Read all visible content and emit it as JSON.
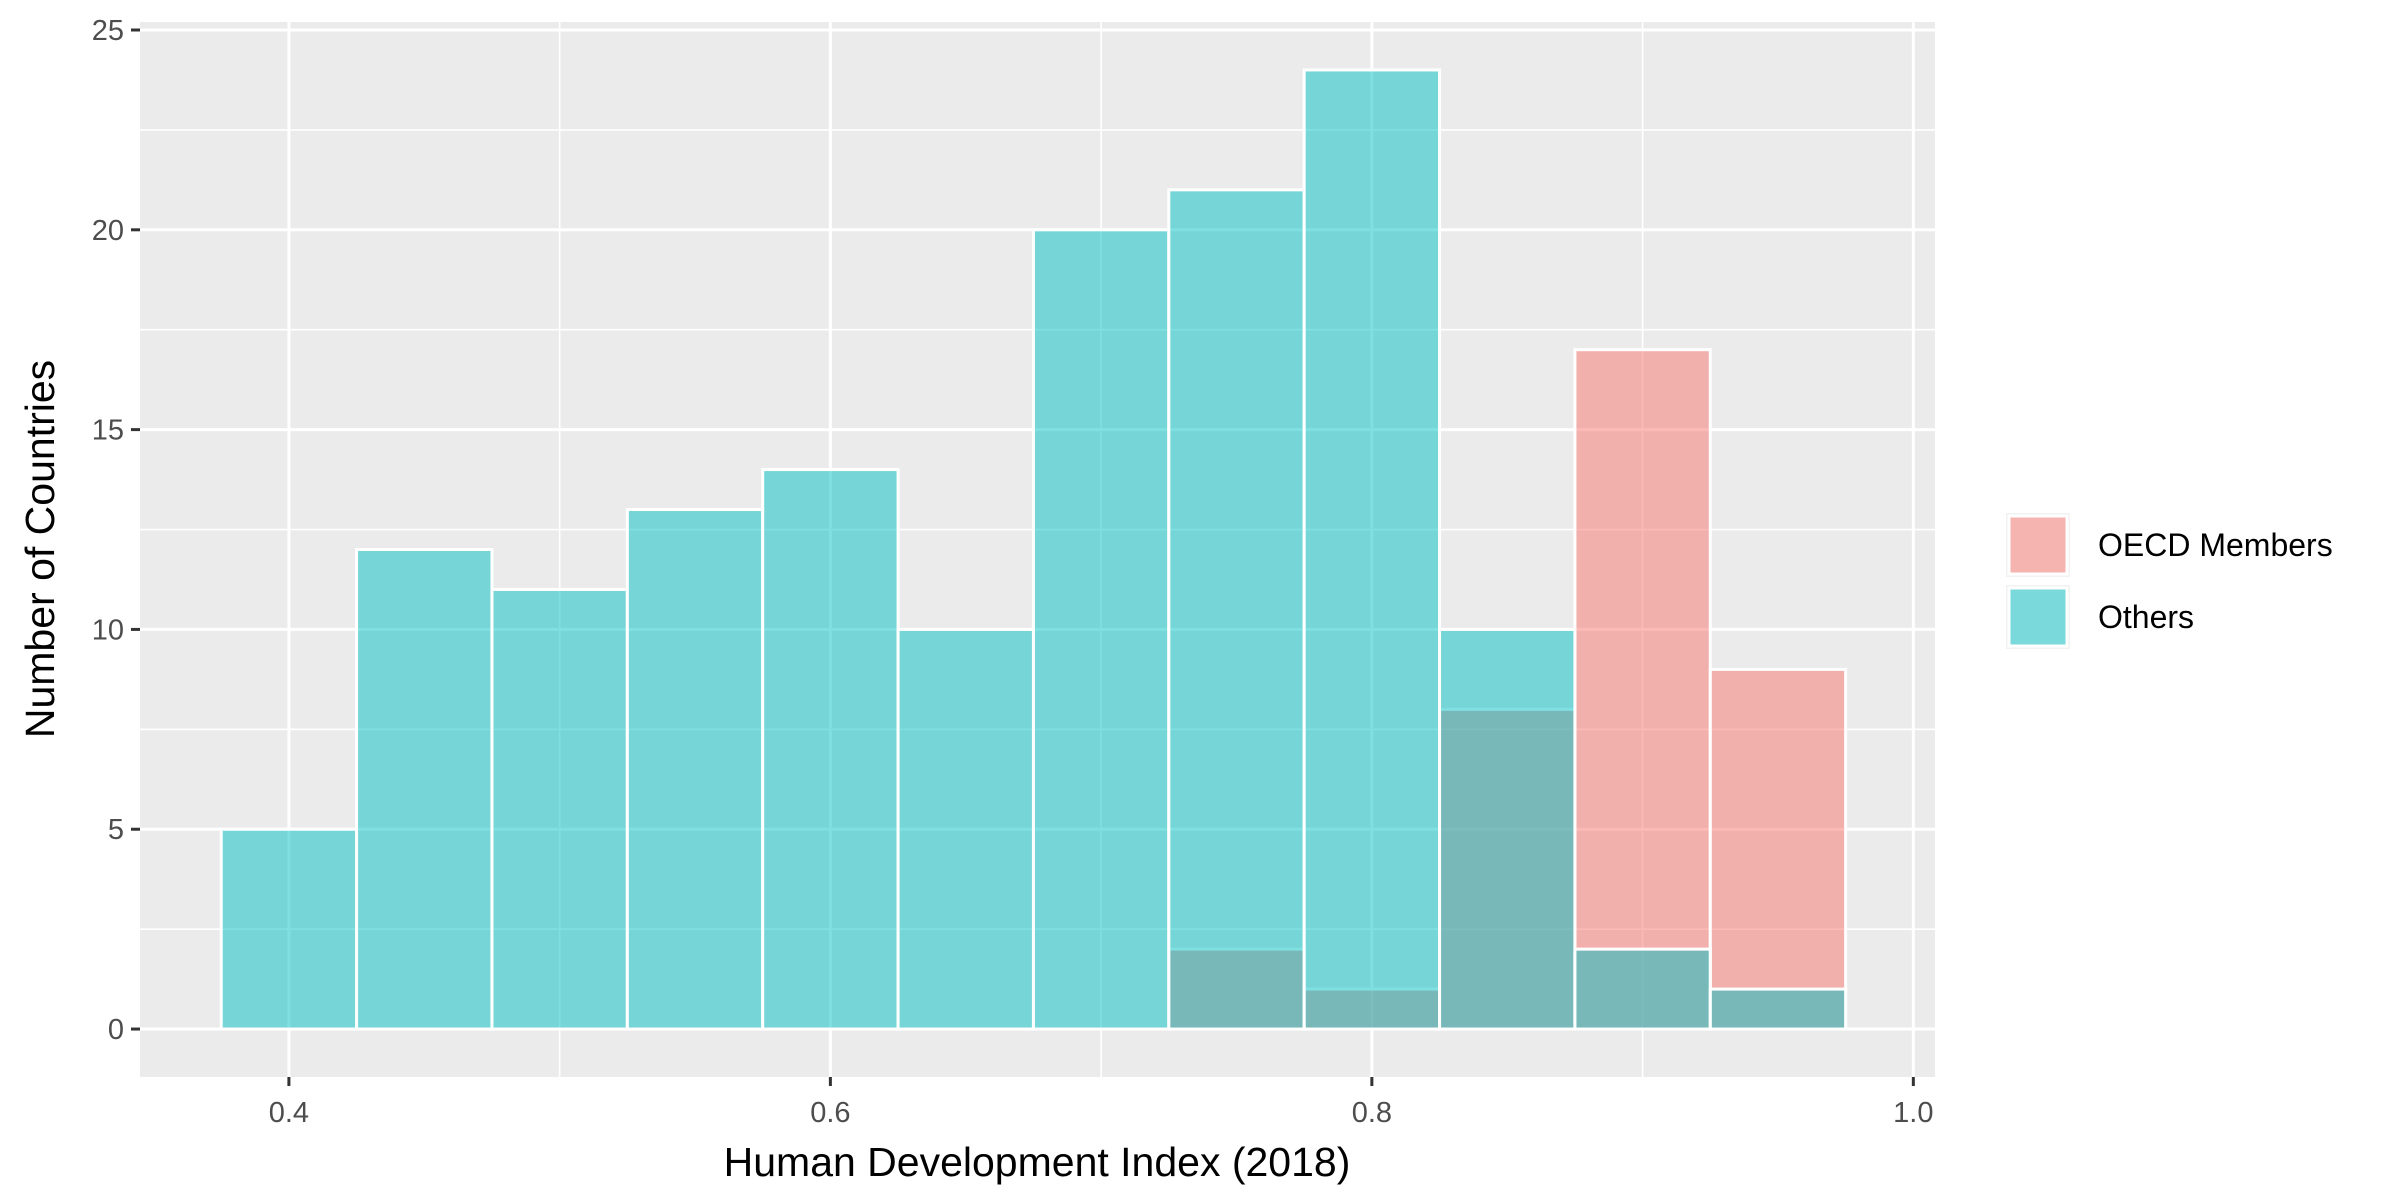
{
  "chart_data": {
    "type": "bar",
    "subtype": "histogram-overlay",
    "title": "",
    "xlabel": "Human Development Index (2018)",
    "ylabel": "Number of Countries",
    "bin_width": 0.05,
    "bin_centers": [
      0.4,
      0.45,
      0.5,
      0.55,
      0.6,
      0.65,
      0.7,
      0.75,
      0.8,
      0.85,
      0.9,
      0.95
    ],
    "series": [
      {
        "name": "OECD Members",
        "color": "#F8766D",
        "values": [
          0,
          0,
          0,
          0,
          0,
          0,
          0,
          2,
          1,
          8,
          17,
          9
        ]
      },
      {
        "name": "Others",
        "color": "#00BFC4",
        "values": [
          5,
          12,
          11,
          13,
          14,
          10,
          20,
          21,
          24,
          10,
          2,
          1
        ]
      }
    ],
    "xlim": [
      0.345,
      1.008
    ],
    "ylim": [
      -1.2,
      25.2
    ],
    "x_ticks": [
      0.4,
      0.6,
      0.8,
      1.0
    ],
    "x_tick_labels": [
      "0.4",
      "0.6",
      "0.8",
      "1.0"
    ],
    "y_ticks": [
      0,
      5,
      10,
      15,
      20,
      25
    ],
    "y_tick_labels": [
      "0",
      "5",
      "10",
      "15",
      "20",
      "25"
    ],
    "grid": true,
    "legend_position": "right",
    "panel_background": "#EBEBEB",
    "grid_color": "#FFFFFF",
    "fill_opacity": 0.5
  }
}
